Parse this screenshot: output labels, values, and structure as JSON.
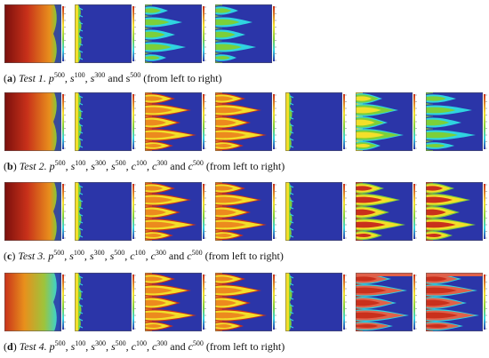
{
  "rows": [
    {
      "letter": "a",
      "test": "Test 1.",
      "fields": [
        {
          "base": "p",
          "sup": "500"
        },
        {
          "base": "s",
          "sup": "100"
        },
        {
          "base": "s",
          "sup": "300"
        },
        {
          "base": "s",
          "sup": "500",
          "upright": true
        }
      ],
      "joiner": "and",
      "suffix": "(from left to right)"
    },
    {
      "letter": "b",
      "test": "Test 2.",
      "fields": [
        {
          "base": "p",
          "sup": "500"
        },
        {
          "base": "s",
          "sup": "100"
        },
        {
          "base": "s",
          "sup": "300"
        },
        {
          "base": "s",
          "sup": "500"
        },
        {
          "base": "c",
          "sup": "100"
        },
        {
          "base": "c",
          "sup": "300"
        },
        {
          "base": "c",
          "sup": "500"
        }
      ],
      "joiner": "and",
      "suffix": "(from left to right)"
    },
    {
      "letter": "c",
      "test": "Test 3.",
      "fields": [
        {
          "base": "p",
          "sup": "500"
        },
        {
          "base": "s",
          "sup": "100"
        },
        {
          "base": "s",
          "sup": "300"
        },
        {
          "base": "s",
          "sup": "500"
        },
        {
          "base": "c",
          "sup": "100"
        },
        {
          "base": "c",
          "sup": "300"
        },
        {
          "base": "c",
          "sup": "500"
        }
      ],
      "joiner": "and",
      "suffix": "(from left to right)"
    },
    {
      "letter": "d",
      "test": "Test 4.",
      "fields": [
        {
          "base": "p",
          "sup": "500"
        },
        {
          "base": "s",
          "sup": "100"
        },
        {
          "base": "s",
          "sup": "300"
        },
        {
          "base": "s",
          "sup": "500"
        },
        {
          "base": "c",
          "sup": "100"
        },
        {
          "base": "c",
          "sup": "300"
        },
        {
          "base": "c",
          "sup": "500"
        }
      ],
      "joiner": "and",
      "suffix": "(from left to right)"
    }
  ],
  "colors": {
    "background_blue": "#2b35a8",
    "pressure_dark": "#7a0f0c",
    "pressure_red": "#c8311a",
    "pressure_orange": "#e8901c",
    "pressure_green": "#9dc43c",
    "cyan": "#2fd4e0",
    "green": "#7ccf3a",
    "yellow": "#f2df2a",
    "orange": "#ec8a1e",
    "red": "#c9301c",
    "salmon": "#e0614a"
  },
  "panel_types": {
    "a": [
      "pressure",
      "thin",
      "saturation-blue",
      "saturation-blue"
    ],
    "b": [
      "pressure",
      "thin",
      "saturation-warm",
      "saturation-warm",
      "thin",
      "conc-green",
      "conc-cyan"
    ],
    "c": [
      "pressure",
      "thin",
      "saturation-warm",
      "saturation-warm",
      "thin",
      "conc-warm",
      "conc-warm"
    ],
    "d": [
      "pressure-green",
      "thin",
      "saturation-warm",
      "saturation-warm",
      "thin",
      "conc-red",
      "conc-red"
    ]
  }
}
